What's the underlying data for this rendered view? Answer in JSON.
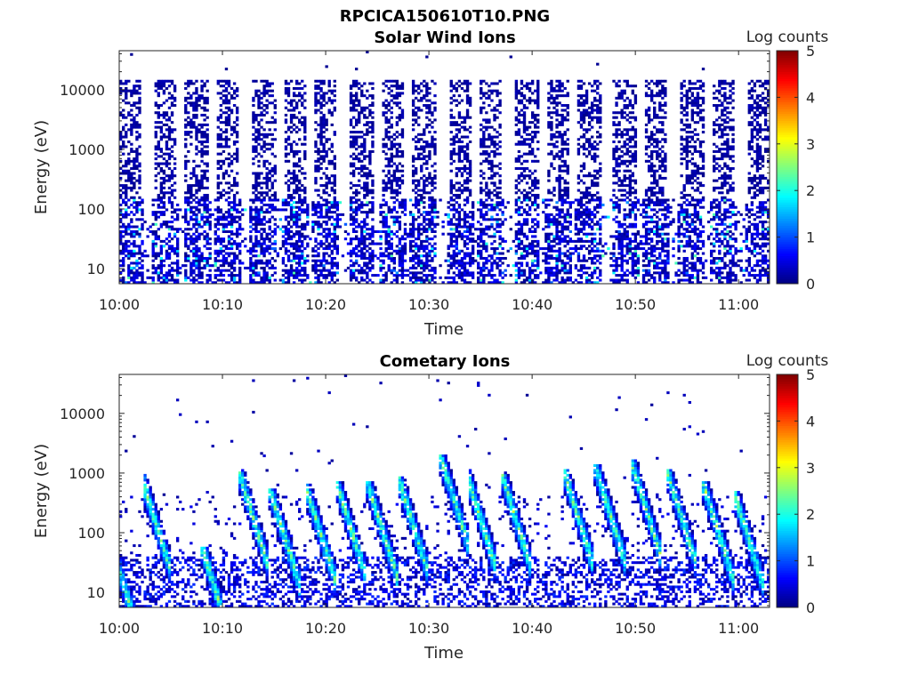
{
  "figure": {
    "title": "RPCICA150610T10.PNG"
  },
  "colorscale": {
    "name": "jet",
    "stops": [
      "#00007f",
      "#0000ff",
      "#007fff",
      "#00ffff",
      "#7fff7f",
      "#ffff00",
      "#ff7f00",
      "#ff0000",
      "#7f0000"
    ]
  },
  "chart_data": [
    {
      "type": "heatmap",
      "title": "Solar Wind Ions",
      "xlabel": "Time",
      "ylabel": "Energy (eV)",
      "x_range": [
        "10:00",
        "11:03"
      ],
      "xticks": [
        "10:00",
        "10:10",
        "10:20",
        "10:30",
        "10:40",
        "10:50",
        "11:00"
      ],
      "y_scale": "log",
      "y_range": [
        5.6,
        45000
      ],
      "yticks": [
        "10",
        "100",
        "1000",
        "10000"
      ],
      "colorbar": {
        "label": "Log counts",
        "range": [
          0,
          5
        ],
        "ticks": [
          "0",
          "1",
          "2",
          "3",
          "4",
          "5"
        ]
      },
      "pattern": {
        "sweep_centers_min": [
          1,
          4.5,
          7.5,
          10.5,
          14,
          17,
          20,
          23.5,
          26.5,
          29.5,
          33,
          36,
          39.5,
          42.5,
          45.5,
          49,
          52,
          55.5,
          58.5,
          62
        ],
        "high_energy_density": 0.45,
        "low_energy_density": 0.55,
        "peak_log_counts": 2.3
      }
    },
    {
      "type": "heatmap",
      "title": "Cometary Ions",
      "xlabel": "Time",
      "ylabel": "Energy (eV)",
      "x_range": [
        "10:00",
        "11:03"
      ],
      "xticks": [
        "10:00",
        "10:10",
        "10:20",
        "10:30",
        "10:40",
        "10:50",
        "11:00"
      ],
      "y_scale": "log",
      "y_range": [
        5.6,
        45000
      ],
      "yticks": [
        "10",
        "100",
        "1000",
        "10000"
      ],
      "colorbar": {
        "label": "Log counts",
        "range": [
          0,
          5
        ],
        "ticks": [
          "0",
          "1",
          "2",
          "3",
          "4",
          "5"
        ]
      },
      "pattern": {
        "sweep_centers_min": [
          1,
          3.5,
          9.5,
          13,
          16,
          19.5,
          22.5,
          25.5,
          28.5,
          32.5,
          35,
          38.5,
          44.5,
          47.5,
          51,
          54.5,
          58,
          61
        ],
        "peak_energy_ev": [
          30,
          700,
          40,
          800,
          400,
          450,
          500,
          500,
          600,
          1500,
          800,
          700,
          800,
          1000,
          1200,
          800,
          500,
          350
        ],
        "peak_log_counts": 2.9
      }
    }
  ]
}
